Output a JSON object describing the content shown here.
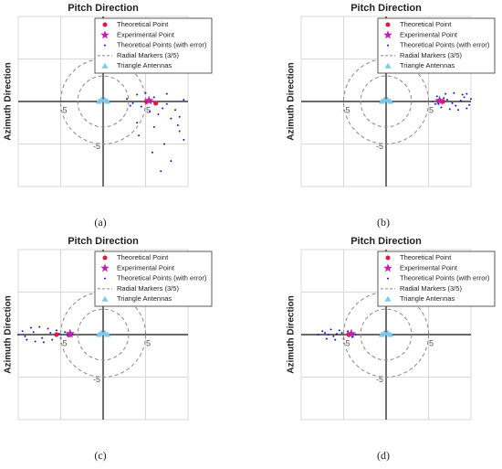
{
  "chart_data": [
    {
      "type": "scatter",
      "title": "Pitch Direction",
      "y_label": "Azimuth Direction",
      "caption": "(a)",
      "xlim": [
        -10,
        10
      ],
      "ylim": [
        -10,
        10
      ],
      "xticks": [
        -5,
        5
      ],
      "yticks": [
        -5,
        5
      ],
      "grid": true,
      "legend": "upper right",
      "series": [
        {
          "name": "Theoretical Point",
          "color": "#e8173a",
          "marker": "dot",
          "x": [
            5.1,
            6.2
          ],
          "y": [
            0,
            -0.2
          ]
        },
        {
          "name": "Experimental Point",
          "color": "#c21fb0",
          "marker": "star",
          "x": [
            5.4
          ],
          "y": [
            0.1
          ]
        },
        {
          "name": "Theoretical Points (with error)",
          "color": "#1515d8",
          "marker": "point",
          "x": [
            2.8,
            3.5,
            4,
            4.5,
            5,
            5.5,
            6,
            6.5,
            7,
            7.5,
            8,
            8.5,
            9,
            9.5,
            4.2,
            5.8,
            7.2,
            8.8,
            3.2,
            6.8,
            8,
            9.5,
            4,
            6,
            7.5,
            9
          ],
          "y": [
            0.3,
            -0.2,
            0.8,
            -0.6,
            1,
            -1.2,
            0.5,
            -1.5,
            -0.8,
            0.9,
            -2,
            -1,
            -3.5,
            0.2,
            -4,
            -6,
            -5,
            -2.8,
            -0.5,
            -8.2,
            -7,
            -4.5,
            -2.5,
            -3,
            -0.3,
            -1.8
          ]
        },
        {
          "name": "Radial Markers (3/5)",
          "color": "#888888",
          "marker": "dashed-circle",
          "radii": [
            3,
            5
          ]
        },
        {
          "name": "Triangle Antennas",
          "color": "#7cc8ee",
          "marker": "triangle",
          "x": [
            -0.5,
            -0.2,
            0.2,
            0.5
          ],
          "y": [
            0,
            0.2,
            0.2,
            0
          ]
        }
      ]
    },
    {
      "type": "scatter",
      "title": "Pitch Direction",
      "y_label": "Azimuth Direction",
      "caption": "(b)",
      "xlim": [
        -10,
        10
      ],
      "ylim": [
        -10,
        10
      ],
      "xticks": [
        -5,
        5
      ],
      "yticks": [
        -5,
        5
      ],
      "grid": true,
      "legend": "upper right",
      "series": [
        {
          "name": "Theoretical Point",
          "color": "#e8173a",
          "marker": "dot",
          "x": [
            6.7
          ],
          "y": [
            0
          ]
        },
        {
          "name": "Experimental Point",
          "color": "#c21fb0",
          "marker": "star",
          "x": [
            6.3
          ],
          "y": [
            0.1
          ]
        },
        {
          "name": "Theoretical Points (with error)",
          "color": "#1515d8",
          "marker": "point",
          "x": [
            5.5,
            6,
            6.5,
            7,
            7.5,
            8,
            8.5,
            9,
            9.5,
            10,
            6.2,
            7.2,
            8.2,
            9.2,
            6.8,
            7.8,
            8.8,
            9.8,
            5.8,
            9.5
          ],
          "y": [
            0,
            0.6,
            -0.7,
            0.9,
            -0.9,
            1,
            -1,
            0.8,
            -0.8,
            0.3,
            -0.3,
            0.2,
            -0.5,
            0.5,
            0.4,
            -0.2,
            0.1,
            -0.4,
            -0.3,
            0.9
          ]
        },
        {
          "name": "Radial Markers (3/5)",
          "color": "#888888",
          "marker": "dashed-circle",
          "radii": [
            3,
            5
          ]
        },
        {
          "name": "Triangle Antennas",
          "color": "#7cc8ee",
          "marker": "triangle",
          "x": [
            -0.5,
            -0.2,
            0.2,
            0.5
          ],
          "y": [
            0,
            0.2,
            0.2,
            0
          ]
        }
      ]
    },
    {
      "type": "scatter",
      "title": "Pitch Direction",
      "y_label": "Azimuth Direction",
      "caption": "(c)",
      "xlim": [
        -10,
        10
      ],
      "ylim": [
        -10,
        10
      ],
      "xticks": [
        -5,
        5
      ],
      "yticks": [
        -5,
        5
      ],
      "grid": true,
      "legend": "upper right",
      "series": [
        {
          "name": "Theoretical Point",
          "color": "#e8173a",
          "marker": "dot",
          "x": [
            -5.5,
            -3.9
          ],
          "y": [
            0,
            0
          ]
        },
        {
          "name": "Experimental Point",
          "color": "#c21fb0",
          "marker": "star",
          "x": [
            -3.9
          ],
          "y": [
            0.1
          ]
        },
        {
          "name": "Theoretical Points (with error)",
          "color": "#1515d8",
          "marker": "point",
          "x": [
            -10,
            -9.5,
            -9,
            -8.5,
            -8,
            -7.5,
            -7,
            -6.5,
            -6,
            -5.5,
            -5,
            -4.5,
            -4,
            -3.6,
            -9.2,
            -8.2,
            -7.2,
            -6.2,
            -5.2,
            -4.2
          ],
          "y": [
            0,
            0.4,
            -0.6,
            0.8,
            -0.8,
            0.9,
            -0.9,
            0.7,
            -0.6,
            0.5,
            -0.4,
            0.3,
            -0.2,
            0,
            -0.2,
            0.3,
            -0.4,
            0.2,
            0.1,
            -0.1
          ]
        },
        {
          "name": "Radial Markers (3/5)",
          "color": "#888888",
          "marker": "dashed-circle",
          "radii": [
            3,
            5
          ]
        },
        {
          "name": "Triangle Antennas",
          "color": "#7cc8ee",
          "marker": "triangle",
          "x": [
            -0.5,
            -0.2,
            0.2,
            0.5
          ],
          "y": [
            0,
            0.2,
            0.2,
            0
          ]
        }
      ]
    },
    {
      "type": "scatter",
      "title": "Pitch Direction",
      "y_label": "Azimuth Direction",
      "caption": "(d)",
      "xlim": [
        -10,
        10
      ],
      "ylim": [
        -10,
        10
      ],
      "xticks": [
        -5,
        5
      ],
      "yticks": [
        -5,
        5
      ],
      "grid": true,
      "legend": "upper right",
      "series": [
        {
          "name": "Theoretical Point",
          "color": "#e8173a",
          "marker": "dot",
          "x": [
            -4.4
          ],
          "y": [
            0
          ]
        },
        {
          "name": "Experimental Point",
          "color": "#c21fb0",
          "marker": "star",
          "x": [
            -4.1
          ],
          "y": [
            0.1
          ]
        },
        {
          "name": "Theoretical Points (with error)",
          "color": "#1515d8",
          "marker": "point",
          "x": [
            -8,
            -7.5,
            -7,
            -6.5,
            -6,
            -5.5,
            -5,
            -4.5,
            -4,
            -3.6,
            -7.2,
            -6.2,
            -5.2,
            -4.2,
            -6.8,
            -5.8
          ],
          "y": [
            0,
            0.4,
            -0.5,
            0.6,
            -0.6,
            0.5,
            -0.5,
            0.4,
            -0.3,
            0,
            0.2,
            -0.2,
            0.2,
            -0.1,
            0,
            0.1
          ]
        },
        {
          "name": "Radial Markers (3/5)",
          "color": "#888888",
          "marker": "dashed-circle",
          "radii": [
            3,
            5
          ]
        },
        {
          "name": "Triangle Antennas",
          "color": "#7cc8ee",
          "marker": "triangle",
          "x": [
            -0.5,
            -0.2,
            0.2,
            0.5
          ],
          "y": [
            0,
            0.2,
            0.2,
            0
          ]
        }
      ]
    }
  ]
}
